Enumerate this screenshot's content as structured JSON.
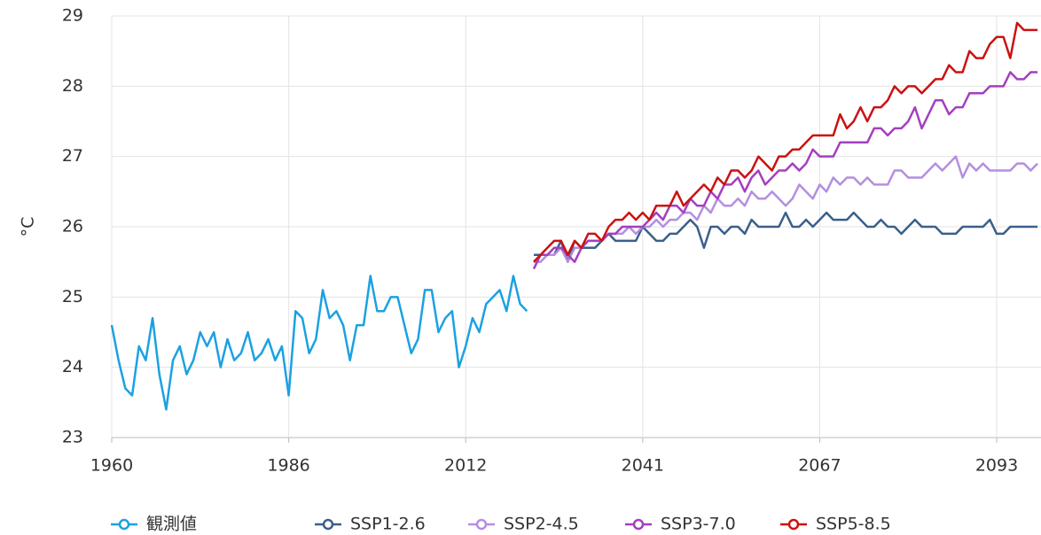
{
  "chart_data": {
    "type": "line",
    "y_label": "°C",
    "categories": [
      "1960",
      null,
      null,
      null,
      null,
      null,
      null,
      null,
      null,
      null,
      null,
      null,
      null,
      null,
      null,
      null,
      null,
      null,
      null,
      null,
      null,
      null,
      null,
      null,
      null,
      null,
      "1986",
      null,
      null,
      null,
      null,
      null,
      null,
      null,
      null,
      null,
      null,
      null,
      null,
      null,
      null,
      null,
      null,
      null,
      null,
      null,
      null,
      null,
      null,
      null,
      null,
      null,
      "2012",
      null,
      null,
      null,
      null,
      null,
      null,
      null,
      null,
      null,
      null,
      null,
      null,
      null,
      null,
      null,
      null,
      null,
      null,
      null,
      null,
      null,
      null,
      null,
      null,
      null,
      "2041",
      null,
      null,
      null,
      null,
      null,
      null,
      null,
      null,
      null,
      null,
      null,
      null,
      null,
      null,
      null,
      null,
      null,
      null,
      null,
      null,
      null,
      null,
      null,
      null,
      null,
      "2067",
      null,
      null,
      null,
      null,
      null,
      null,
      null,
      null,
      null,
      null,
      null,
      null,
      null,
      null,
      null,
      null,
      null,
      null,
      null,
      null,
      null,
      null,
      null,
      null,
      null,
      "2093",
      null,
      null,
      null,
      null,
      null,
      null
    ],
    "ylim": [
      23,
      29
    ],
    "yticks": [
      23,
      24,
      25,
      26,
      27,
      28,
      29
    ],
    "grid": true,
    "legend": "bottom",
    "series": [
      {
        "name": "観測値",
        "color": "#1ba1e2",
        "values": [
          24.6,
          24.1,
          23.7,
          23.6,
          24.3,
          24.1,
          24.7,
          23.9,
          23.4,
          24.1,
          24.3,
          23.9,
          24.1,
          24.5,
          24.3,
          24.5,
          24.0,
          24.4,
          24.1,
          24.2,
          24.5,
          24.1,
          24.2,
          24.4,
          24.1,
          24.3,
          23.6,
          24.8,
          24.7,
          24.2,
          24.4,
          25.1,
          24.7,
          24.8,
          24.6,
          24.1,
          24.6,
          24.6,
          25.3,
          24.8,
          24.8,
          25.0,
          25.0,
          24.6,
          24.2,
          24.4,
          25.1,
          25.1,
          24.5,
          24.7,
          24.8,
          24.0,
          24.3,
          24.7,
          24.5,
          24.9,
          25.0,
          25.1,
          24.8,
          25.3,
          24.9,
          24.8,
          null,
          null,
          null,
          null,
          null,
          null,
          null,
          null,
          null,
          null,
          null,
          null,
          null,
          null,
          null,
          null,
          null,
          null,
          null,
          null,
          null,
          null,
          null,
          null,
          null,
          null,
          null,
          null,
          null,
          null,
          null,
          null,
          null,
          null,
          null,
          null,
          null,
          null,
          null,
          null,
          null,
          null,
          null,
          null,
          null,
          null,
          null,
          null,
          null,
          null,
          null,
          null,
          null,
          null,
          null,
          null,
          null,
          null,
          null,
          null,
          null,
          null,
          null,
          null,
          null,
          null,
          null,
          null,
          null,
          null,
          null,
          null,
          null,
          null,
          null
        ]
      },
      {
        "name": "SSP1-2.6",
        "color": "#3a5f8a",
        "values": [
          null,
          null,
          null,
          null,
          null,
          null,
          null,
          null,
          null,
          null,
          null,
          null,
          null,
          null,
          null,
          null,
          null,
          null,
          null,
          null,
          null,
          null,
          null,
          null,
          null,
          null,
          null,
          null,
          null,
          null,
          null,
          null,
          null,
          null,
          null,
          null,
          null,
          null,
          null,
          null,
          null,
          null,
          null,
          null,
          null,
          null,
          null,
          null,
          null,
          null,
          null,
          null,
          null,
          null,
          null,
          null,
          null,
          null,
          null,
          null,
          null,
          null,
          25.6,
          25.6,
          25.6,
          25.6,
          25.8,
          25.5,
          25.8,
          25.7,
          25.7,
          25.7,
          25.8,
          25.9,
          25.8,
          25.8,
          25.8,
          25.8,
          26.0,
          25.9,
          25.8,
          25.8,
          25.9,
          25.9,
          26.0,
          26.1,
          26.0,
          25.7,
          26.0,
          26.0,
          25.9,
          26.0,
          26.0,
          25.9,
          26.1,
          26.0,
          26.0,
          26.0,
          26.0,
          26.2,
          26.0,
          26.0,
          26.1,
          26.0,
          26.1,
          26.2,
          26.1,
          26.1,
          26.1,
          26.2,
          26.1,
          26.0,
          26.0,
          26.1,
          26.0,
          26.0,
          25.9,
          26.0,
          26.1,
          26.0,
          26.0,
          26.0,
          25.9,
          25.9,
          25.9,
          26.0,
          26.0,
          26.0,
          26.0,
          26.1,
          25.9,
          25.9,
          26.0,
          26.0,
          26.0,
          26.0,
          26.0
        ]
      },
      {
        "name": "SSP2-4.5",
        "color": "#b48fe0",
        "values": [
          null,
          null,
          null,
          null,
          null,
          null,
          null,
          null,
          null,
          null,
          null,
          null,
          null,
          null,
          null,
          null,
          null,
          null,
          null,
          null,
          null,
          null,
          null,
          null,
          null,
          null,
          null,
          null,
          null,
          null,
          null,
          null,
          null,
          null,
          null,
          null,
          null,
          null,
          null,
          null,
          null,
          null,
          null,
          null,
          null,
          null,
          null,
          null,
          null,
          null,
          null,
          null,
          null,
          null,
          null,
          null,
          null,
          null,
          null,
          null,
          null,
          null,
          25.5,
          25.5,
          25.6,
          25.6,
          25.7,
          25.5,
          25.7,
          25.7,
          25.8,
          25.8,
          25.8,
          25.9,
          25.9,
          25.9,
          26.0,
          25.9,
          26.0,
          26.0,
          26.1,
          26.0,
          26.1,
          26.1,
          26.2,
          26.2,
          26.1,
          26.3,
          26.2,
          26.4,
          26.3,
          26.3,
          26.4,
          26.3,
          26.5,
          26.4,
          26.4,
          26.5,
          26.4,
          26.3,
          26.4,
          26.6,
          26.5,
          26.4,
          26.6,
          26.5,
          26.7,
          26.6,
          26.7,
          26.7,
          26.6,
          26.7,
          26.6,
          26.6,
          26.6,
          26.8,
          26.8,
          26.7,
          26.7,
          26.7,
          26.8,
          26.9,
          26.8,
          26.9,
          27.0,
          26.7,
          26.9,
          26.8,
          26.9,
          26.8,
          26.8,
          26.8,
          26.8,
          26.9,
          26.9,
          26.8,
          26.9
        ]
      },
      {
        "name": "SSP3-7.0",
        "color": "#a43fbf",
        "values": [
          null,
          null,
          null,
          null,
          null,
          null,
          null,
          null,
          null,
          null,
          null,
          null,
          null,
          null,
          null,
          null,
          null,
          null,
          null,
          null,
          null,
          null,
          null,
          null,
          null,
          null,
          null,
          null,
          null,
          null,
          null,
          null,
          null,
          null,
          null,
          null,
          null,
          null,
          null,
          null,
          null,
          null,
          null,
          null,
          null,
          null,
          null,
          null,
          null,
          null,
          null,
          null,
          null,
          null,
          null,
          null,
          null,
          null,
          null,
          null,
          null,
          null,
          25.4,
          25.6,
          25.6,
          25.7,
          25.7,
          25.6,
          25.5,
          25.7,
          25.8,
          25.8,
          25.8,
          25.9,
          25.9,
          26.0,
          26.0,
          26.0,
          26.0,
          26.1,
          26.2,
          26.1,
          26.3,
          26.3,
          26.2,
          26.4,
          26.3,
          26.3,
          26.5,
          26.4,
          26.6,
          26.6,
          26.7,
          26.5,
          26.7,
          26.8,
          26.6,
          26.7,
          26.8,
          26.8,
          26.9,
          26.8,
          26.9,
          27.1,
          27.0,
          27.0,
          27.0,
          27.2,
          27.2,
          27.2,
          27.2,
          27.2,
          27.4,
          27.4,
          27.3,
          27.4,
          27.4,
          27.5,
          27.7,
          27.4,
          27.6,
          27.8,
          27.8,
          27.6,
          27.7,
          27.7,
          27.9,
          27.9,
          27.9,
          28.0,
          28.0,
          28.0,
          28.2,
          28.1,
          28.1,
          28.2,
          28.2
        ]
      },
      {
        "name": "SSP5-8.5",
        "color": "#cc1111",
        "values": [
          null,
          null,
          null,
          null,
          null,
          null,
          null,
          null,
          null,
          null,
          null,
          null,
          null,
          null,
          null,
          null,
          null,
          null,
          null,
          null,
          null,
          null,
          null,
          null,
          null,
          null,
          null,
          null,
          null,
          null,
          null,
          null,
          null,
          null,
          null,
          null,
          null,
          null,
          null,
          null,
          null,
          null,
          null,
          null,
          null,
          null,
          null,
          null,
          null,
          null,
          null,
          null,
          null,
          null,
          null,
          null,
          null,
          null,
          null,
          null,
          null,
          null,
          25.5,
          25.6,
          25.7,
          25.8,
          25.8,
          25.6,
          25.8,
          25.7,
          25.9,
          25.9,
          25.8,
          26.0,
          26.1,
          26.1,
          26.2,
          26.1,
          26.2,
          26.1,
          26.3,
          26.3,
          26.3,
          26.5,
          26.3,
          26.4,
          26.5,
          26.6,
          26.5,
          26.7,
          26.6,
          26.8,
          26.8,
          26.7,
          26.8,
          27.0,
          26.9,
          26.8,
          27.0,
          27.0,
          27.1,
          27.1,
          27.2,
          27.3,
          27.3,
          27.3,
          27.3,
          27.6,
          27.4,
          27.5,
          27.7,
          27.5,
          27.7,
          27.7,
          27.8,
          28.0,
          27.9,
          28.0,
          28.0,
          27.9,
          28.0,
          28.1,
          28.1,
          28.3,
          28.2,
          28.2,
          28.5,
          28.4,
          28.4,
          28.6,
          28.7,
          28.7,
          28.4,
          28.9,
          28.8,
          28.8,
          28.8
        ]
      }
    ]
  }
}
